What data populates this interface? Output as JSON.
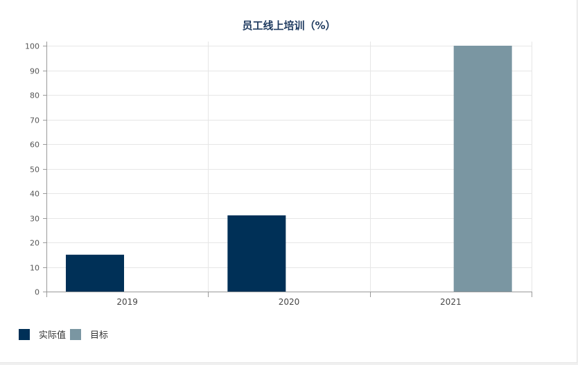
{
  "chart_data": {
    "type": "bar",
    "title": "员工线上培训（%）",
    "categories": [
      "2019",
      "2020",
      "2021"
    ],
    "series": [
      {
        "name": "实际值",
        "color": "#003057",
        "values": [
          15,
          31,
          null
        ]
      },
      {
        "name": "目标",
        "color": "#7a96a2",
        "values": [
          null,
          null,
          100
        ]
      }
    ],
    "ylim": [
      0,
      100
    ],
    "yticks": [
      0,
      10,
      20,
      30,
      40,
      50,
      60,
      70,
      80,
      90,
      100
    ],
    "grid": true,
    "legend_position": "bottom-left"
  }
}
